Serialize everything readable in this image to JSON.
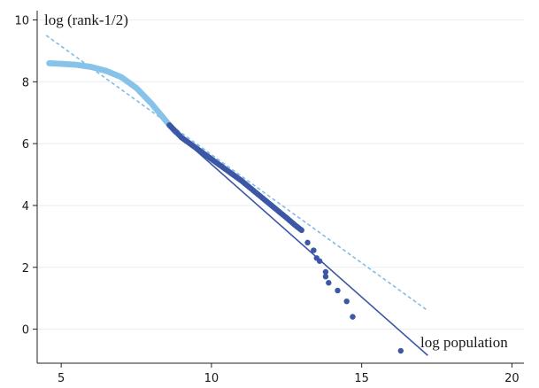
{
  "chart_data": {
    "type": "scatter",
    "ylabel": "log (rank-1/2)",
    "xlabel": "log population",
    "xlim": [
      4.2,
      20.4
    ],
    "ylim": [
      -1.1,
      10.3
    ],
    "xticks": [
      5,
      10,
      15,
      20
    ],
    "yticks": [
      0,
      2,
      4,
      6,
      8,
      10
    ],
    "grid": "horizontal",
    "colors": {
      "light_points": "#87c3e9",
      "dark_points": "#3b57a5",
      "dashed_fit": "#7fbde6",
      "solid_fit": "#3b57a5",
      "grid": "#ececec",
      "axis": "#222222"
    },
    "series": [
      {
        "style": "light-points",
        "points": [
          [
            4.6,
            8.6
          ],
          [
            5.0,
            8.58
          ],
          [
            5.5,
            8.55
          ],
          [
            6.0,
            8.48
          ],
          [
            6.5,
            8.35
          ],
          [
            7.0,
            8.15
          ],
          [
            7.5,
            7.8
          ],
          [
            8.0,
            7.3
          ],
          [
            8.3,
            6.95
          ],
          [
            8.6,
            6.6
          ],
          [
            8.8,
            6.38
          ]
        ]
      },
      {
        "style": "dark-points",
        "points": [
          [
            8.6,
            6.6
          ],
          [
            9.0,
            6.2
          ],
          [
            9.5,
            5.85
          ],
          [
            10.0,
            5.5
          ],
          [
            10.5,
            5.15
          ],
          [
            11.0,
            4.8
          ],
          [
            11.5,
            4.4
          ],
          [
            12.0,
            4.0
          ],
          [
            12.5,
            3.6
          ],
          [
            12.8,
            3.35
          ],
          [
            13.0,
            3.2
          ],
          [
            13.2,
            2.8
          ],
          [
            13.4,
            2.55
          ],
          [
            13.5,
            2.3
          ],
          [
            13.6,
            2.2
          ],
          [
            13.8,
            1.85
          ],
          [
            13.8,
            1.7
          ],
          [
            13.9,
            1.5
          ],
          [
            14.2,
            1.25
          ],
          [
            14.5,
            0.9
          ],
          [
            14.7,
            0.4
          ],
          [
            16.3,
            -0.7
          ]
        ]
      },
      {
        "style": "dashed-line",
        "points": [
          [
            4.5,
            9.5
          ],
          [
            17.2,
            0.6
          ]
        ]
      },
      {
        "style": "solid-line",
        "points": [
          [
            8.5,
            6.62
          ],
          [
            17.2,
            -0.85
          ]
        ]
      }
    ]
  }
}
